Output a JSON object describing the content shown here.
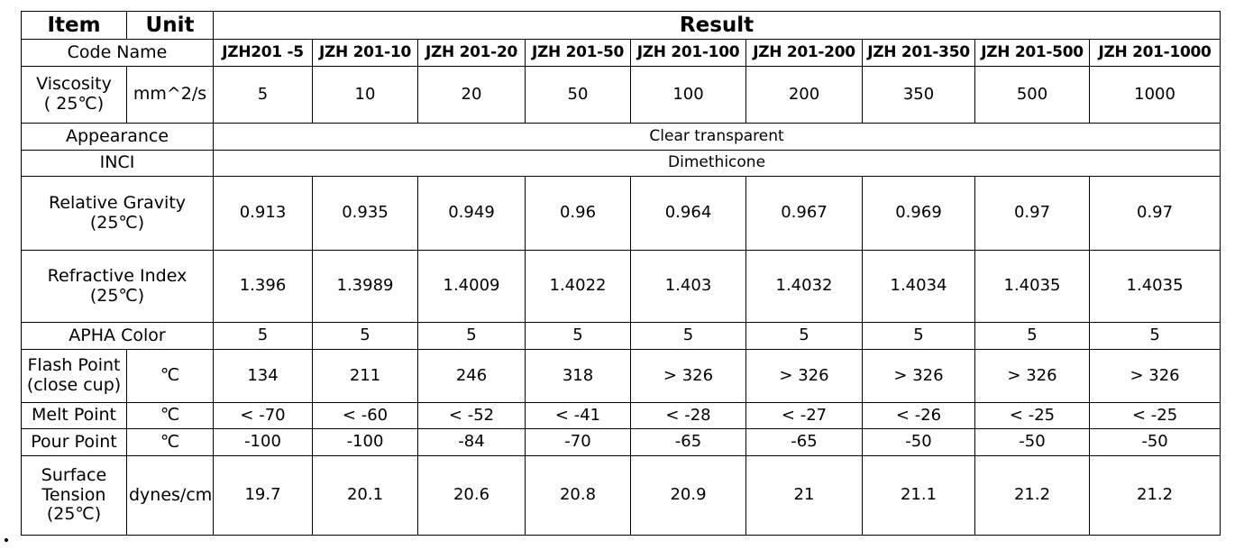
{
  "headers": {
    "item": "Item",
    "unit": "Unit",
    "result": "Result"
  },
  "code_name_label": "Code Name",
  "code_names": [
    "JZH201 -5",
    "JZH 201-10",
    "JZH 201-20",
    "JZH 201-50",
    "JZH 201-100",
    "JZH 201-200",
    "JZH 201-350",
    "JZH 201-500",
    "JZH 201-1000"
  ],
  "viscosity": {
    "label_line1": "Viscosity",
    "label_line2": "( 25℃)",
    "unit": "mm^2/s",
    "values": [
      "5",
      "10",
      "20",
      "50",
      "100",
      "200",
      "350",
      "500",
      "1000"
    ]
  },
  "appearance": {
    "label": "Appearance",
    "value": "Clear transparent"
  },
  "inci": {
    "label": "INCI",
    "value": "Dimethicone"
  },
  "relative_gravity": {
    "label_line1": "Relative Gravity",
    "label_line2": "(25℃)",
    "values": [
      "0.913",
      "0.935",
      "0.949",
      "0.96",
      "0.964",
      "0.967",
      "0.969",
      "0.97",
      "0.97"
    ]
  },
  "refractive_index": {
    "label_line1": "Refractive Index",
    "label_line2": "(25℃)",
    "values": [
      "1.396",
      "1.3989",
      "1.4009",
      "1.4022",
      "1.403",
      "1.4032",
      "1.4034",
      "1.4035",
      "1.4035"
    ]
  },
  "apha_color": {
    "label": "APHA Color",
    "values": [
      "5",
      "5",
      "5",
      "5",
      "5",
      "5",
      "5",
      "5",
      "5"
    ]
  },
  "flash_point": {
    "label_line1": "Flash Point",
    "label_line2": "(close cup)",
    "unit": "℃",
    "values": [
      "134",
      "211",
      "246",
      "318",
      "> 326",
      "> 326",
      "> 326",
      "> 326",
      "> 326"
    ]
  },
  "melt_point": {
    "label": "Melt Point",
    "unit": "℃",
    "values": [
      "< -70",
      "< -60",
      "< -52",
      "< -41",
      "< -28",
      "< -27",
      "< -26",
      "< -25",
      "< -25"
    ]
  },
  "pour_point": {
    "label": "Pour Point",
    "unit": "℃",
    "values": [
      "-100",
      "-100",
      "-84",
      "-70",
      "-65",
      "-65",
      "-50",
      "-50",
      "-50"
    ]
  },
  "surface_tension": {
    "label_line1": "Surface",
    "label_line2": "Tension",
    "label_line3": "(25℃)",
    "unit": "dynes/cm",
    "values": [
      "19.7",
      "20.1",
      "20.6",
      "20.8",
      "20.9",
      "21",
      "21.1",
      "21.2",
      "21.2"
    ]
  }
}
